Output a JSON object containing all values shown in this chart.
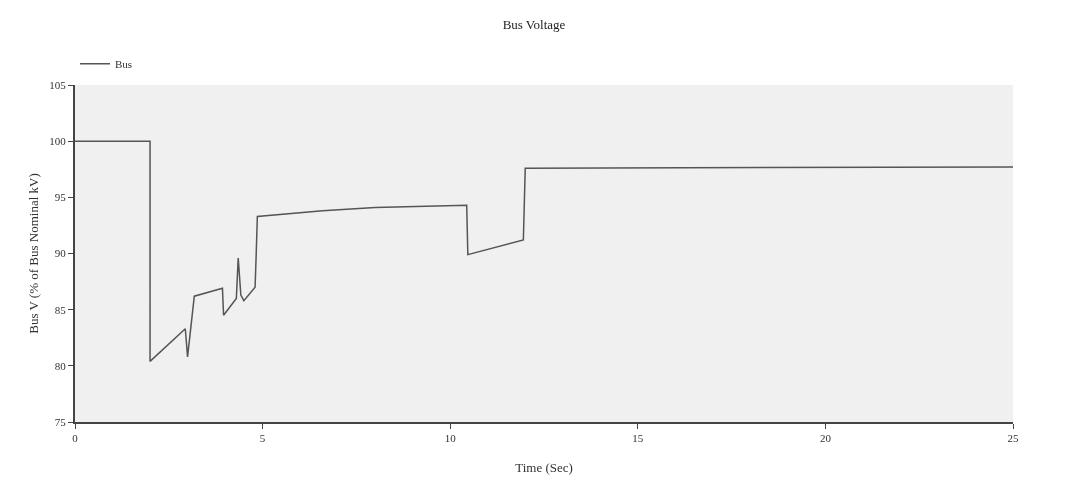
{
  "chart_data": {
    "type": "line",
    "title": "Bus Voltage",
    "xlabel": "Time (Sec)",
    "ylabel": "Bus V (% of Bus Nominal kV)",
    "series": [
      {
        "name": "Bus",
        "color": "#555555",
        "x": [
          0,
          2.0,
          2.0,
          2.94,
          3.0,
          3.18,
          3.93,
          3.96,
          4.3,
          4.35,
          4.42,
          4.5,
          4.8,
          4.83,
          4.86,
          6.6,
          8.0,
          10.44,
          10.47,
          11.95,
          12.0,
          25
        ],
        "values": [
          100,
          100,
          80.4,
          83.3,
          80.8,
          86.2,
          86.9,
          84.5,
          86,
          89.6,
          86.3,
          85.8,
          87,
          90,
          93.3,
          93.8,
          94.1,
          94.3,
          89.9,
          91.2,
          97.6,
          97.7
        ]
      }
    ],
    "xlim": [
      0,
      25
    ],
    "xticks": [
      0,
      5,
      10,
      15,
      20,
      25
    ],
    "ylim": [
      75,
      105
    ],
    "yticks": [
      75,
      80,
      85,
      90,
      95,
      100,
      105
    ],
    "grid": false,
    "legend": "top left",
    "marker": "none",
    "line_style": "solid"
  }
}
